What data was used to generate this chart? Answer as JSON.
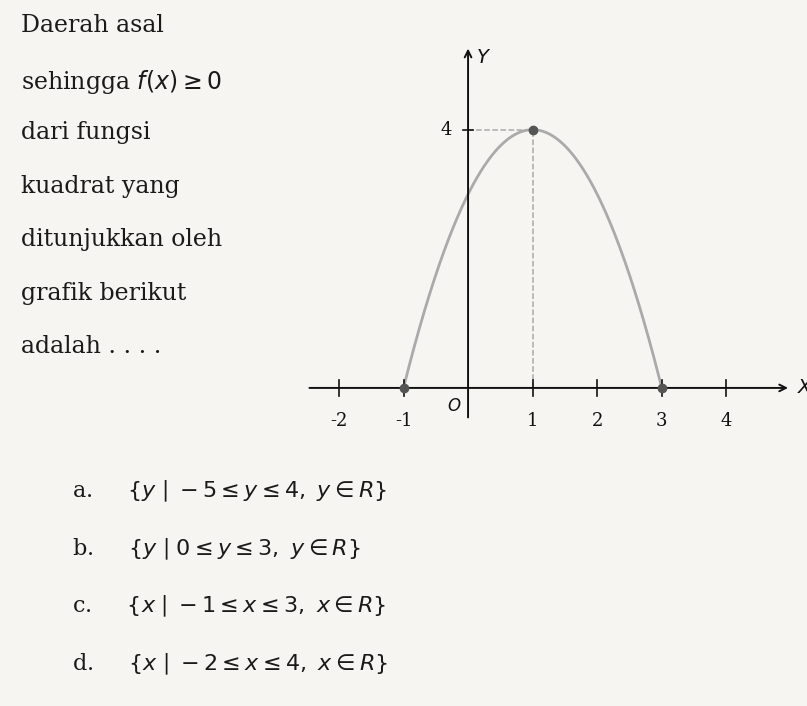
{
  "parabola_roots": [
    -1,
    3
  ],
  "vertex": [
    1,
    4
  ],
  "x_axis_min": -2.5,
  "x_axis_max": 5.0,
  "y_axis_min": -0.5,
  "y_axis_max": 5.3,
  "x_ticks": [
    -2,
    -1,
    1,
    2,
    3,
    4
  ],
  "y_tick_val": 4,
  "curve_color": "#aaaaaa",
  "curve_linewidth": 2.0,
  "dot_color": "#555555",
  "dot_size": 6,
  "dashed_color": "#aaaaaa",
  "axis_color": "#111111",
  "background_color": "#f7f5f2",
  "text_color": "#1a1a1a",
  "question_lines": [
    "Daerah asal",
    "sehingga $f(x) \\geq 0$",
    "dari fungsi",
    "kuadrat yang",
    "ditunjukkan oleh",
    "grafik berikut",
    "adalah . . . ."
  ],
  "options": [
    "a.     $\\{y \\mid -5 \\leq y \\leq 4,\\ y \\in R\\}$",
    "b.     $\\{y \\mid 0 \\leq y \\leq 3,\\ y \\in R\\}$",
    "c.     $\\{x \\mid -1 \\leq x \\leq 3,\\ x \\in R\\}$",
    "d.     $\\{x \\mid -2 \\leq x \\leq 4,\\ x \\in R\\}$"
  ],
  "question_fontsize": 17,
  "options_fontsize": 16,
  "label_fontsize": 14,
  "tick_fontsize": 13
}
